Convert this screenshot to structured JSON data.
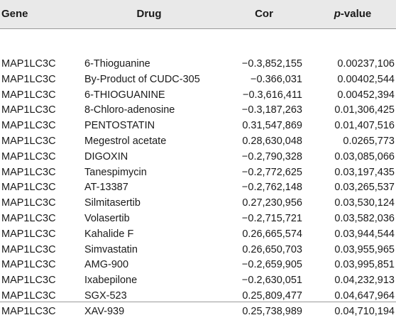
{
  "table": {
    "headers": {
      "gene": "Gene",
      "drug": "Drug",
      "cor": "Cor",
      "pvalue_prefix": "p",
      "pvalue_suffix": "-value"
    },
    "rows": [
      {
        "gene": "MAP1LC3C",
        "drug": "6-Thioguanine",
        "cor": "−0.3,852,155",
        "pvalue": "0.00237,106"
      },
      {
        "gene": "MAP1LC3C",
        "drug": "By-Product of CUDC-305",
        "cor": "−0.366,031",
        "pvalue": "0.00402,544"
      },
      {
        "gene": "MAP1LC3C",
        "drug": "6-THIOGUANINE",
        "cor": "−0.3,616,411",
        "pvalue": "0.00452,394"
      },
      {
        "gene": "MAP1LC3C",
        "drug": "8-Chloro-adenosine",
        "cor": "−0.3,187,263",
        "pvalue": "0.01,306,425"
      },
      {
        "gene": "MAP1LC3C",
        "drug": "PENTOSTATIN",
        "cor": "0.31,547,869",
        "pvalue": "0.01,407,516"
      },
      {
        "gene": "MAP1LC3C",
        "drug": "Megestrol acetate",
        "cor": "0.28,630,048",
        "pvalue": "0.0265,773"
      },
      {
        "gene": "MAP1LC3C",
        "drug": "DIGOXIN",
        "cor": "−0.2,790,328",
        "pvalue": "0.03,085,066"
      },
      {
        "gene": "MAP1LC3C",
        "drug": "Tanespimycin",
        "cor": "−0.2,772,625",
        "pvalue": "0.03,197,435"
      },
      {
        "gene": "MAP1LC3C",
        "drug": "AT-13387",
        "cor": "−0.2,762,148",
        "pvalue": "0.03,265,537"
      },
      {
        "gene": "MAP1LC3C",
        "drug": "Silmitasertib",
        "cor": "0.27,230,956",
        "pvalue": "0.03,530,124"
      },
      {
        "gene": "MAP1LC3C",
        "drug": "Volasertib",
        "cor": "−0.2,715,721",
        "pvalue": "0.03,582,036"
      },
      {
        "gene": "MAP1LC3C",
        "drug": "Kahalide F",
        "cor": "0.26,665,574",
        "pvalue": "0.03,944,544"
      },
      {
        "gene": "MAP1LC3C",
        "drug": "Simvastatin",
        "cor": "0.26,650,703",
        "pvalue": "0.03,955,965"
      },
      {
        "gene": "MAP1LC3C",
        "drug": "AMG-900",
        "cor": "−0.2,659,905",
        "pvalue": "0.03,995,851"
      },
      {
        "gene": "MAP1LC3C",
        "drug": "Ixabepilone",
        "cor": "−0.2,630,051",
        "pvalue": "0.04,232,913"
      },
      {
        "gene": "MAP1LC3C",
        "drug": "SGX-523",
        "cor": "0.25,809,477",
        "pvalue": "0.04,647,964"
      },
      {
        "gene": "MAP1LC3C",
        "drug": "XAV-939",
        "cor": "0.25,738,989",
        "pvalue": "0.04,710,194"
      }
    ]
  }
}
